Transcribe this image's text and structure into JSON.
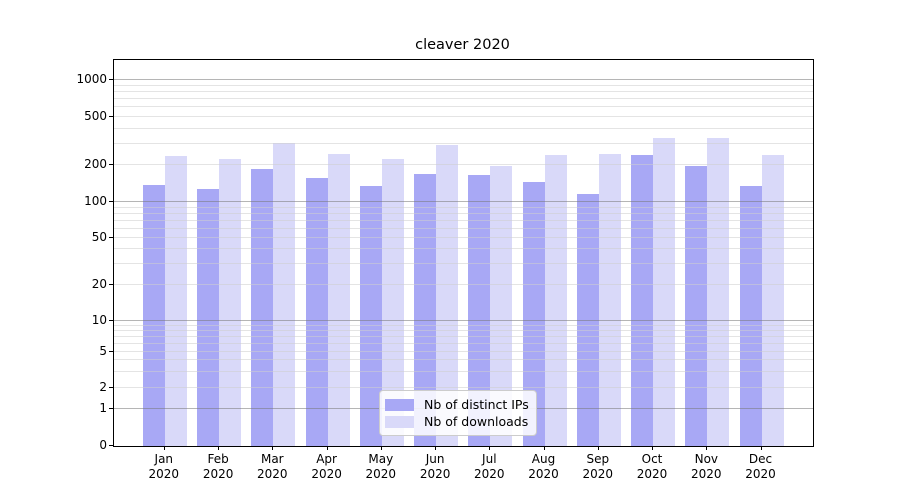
{
  "chart": {
    "title": "cleaver 2020",
    "legend": {
      "items": [
        {
          "label": "Nb of distinct IPs",
          "color": "#a8a8f5"
        },
        {
          "label": "Nb of downloads",
          "color": "#d9d9f9"
        }
      ]
    }
  },
  "chart_data": {
    "type": "bar",
    "title": "cleaver 2020",
    "categories": [
      "Jan 2020",
      "Feb 2020",
      "Mar 2020",
      "Apr 2020",
      "May 2020",
      "Jun 2020",
      "Jul 2020",
      "Aug 2020",
      "Sep 2020",
      "Oct 2020",
      "Nov 2020",
      "Dec 2020"
    ],
    "series": [
      {
        "name": "Nb of distinct IPs",
        "color": "#a8a8f5",
        "values": [
          138,
          128,
          186,
          158,
          136,
          169,
          166,
          146,
          116,
          241,
          197,
          136
        ]
      },
      {
        "name": "Nb of downloads",
        "color": "#d9d9f9",
        "values": [
          238,
          224,
          306,
          247,
          223,
          293,
          196,
          244,
          246,
          334,
          338,
          243
        ]
      }
    ],
    "yscale": "log-like (symlog with 0 baseline)",
    "ytick_labels": [
      "0",
      "1",
      "2",
      "5",
      "10",
      "20",
      "50",
      "100",
      "200",
      "500",
      "1000"
    ],
    "ytick_values": [
      0,
      1,
      2,
      5,
      10,
      20,
      50,
      100,
      200,
      500,
      1000
    ],
    "ylim": [
      0,
      1500
    ],
    "grid": true,
    "legend_position": "lower center",
    "xlabel": "",
    "ylabel": ""
  }
}
